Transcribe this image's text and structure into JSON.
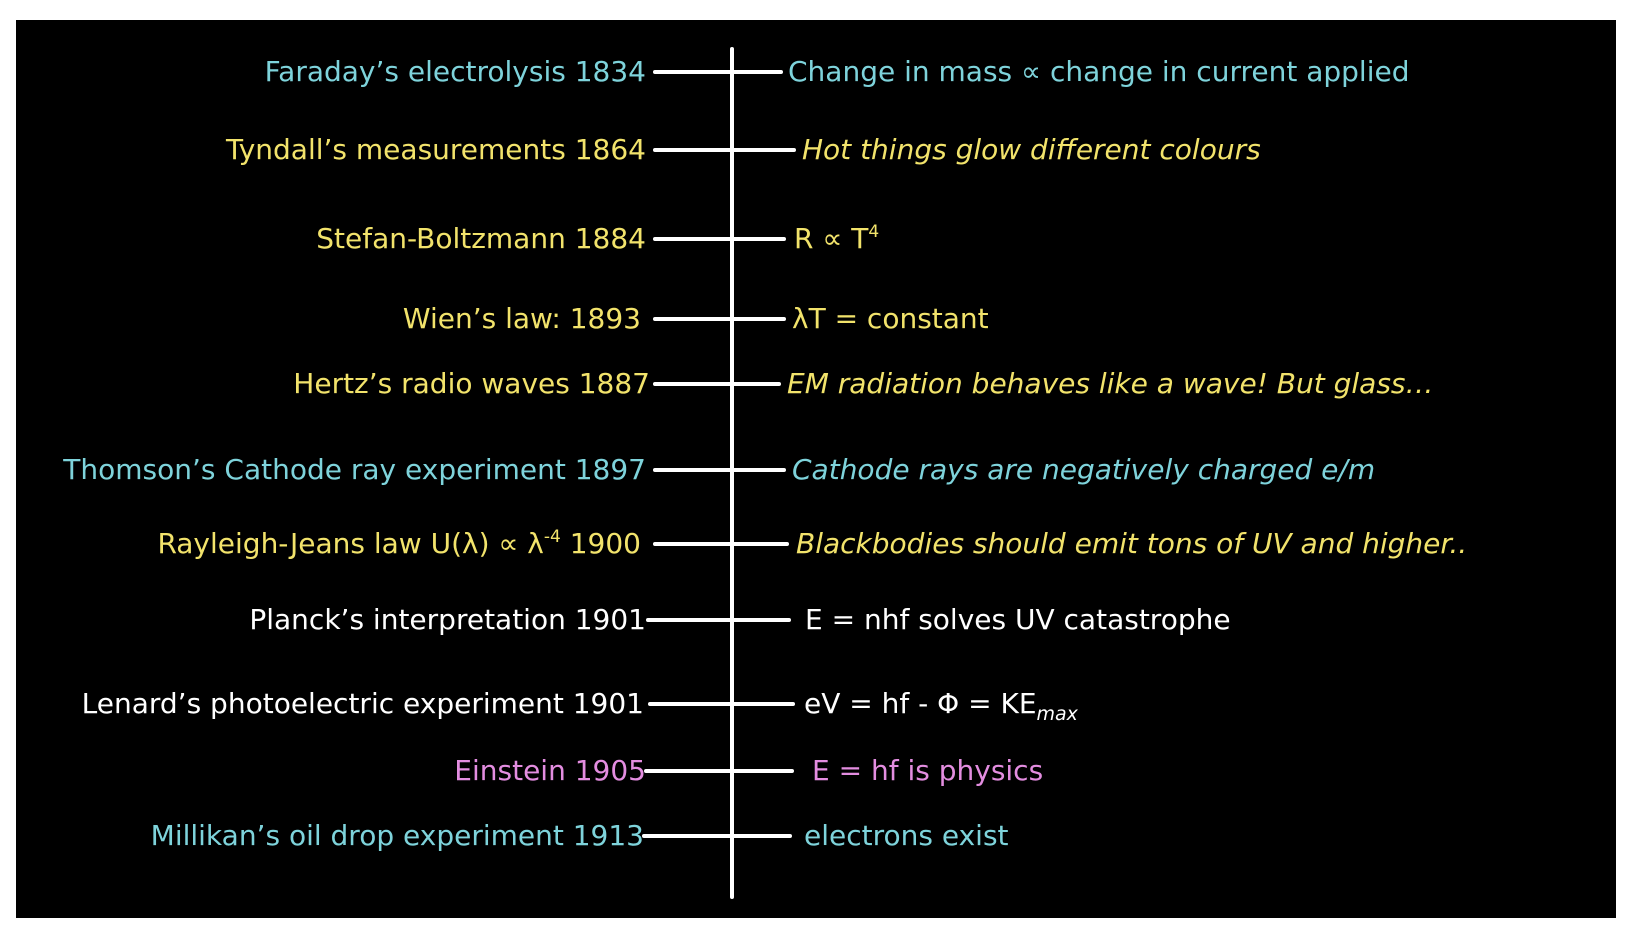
{
  "colors": {
    "background": "#000000",
    "cyan": "#7ed3db",
    "yellow": "#f2e36b",
    "white": "#ffffff",
    "pink": "#e38de0"
  },
  "timeline": [
    {
      "left": "Faraday’s electrolysis  1834",
      "right": "Change in mass ∝ change in current applied",
      "color": "cyan"
    },
    {
      "left": "Tyndall’s measurements 1864",
      "right": "Hot things glow different colours",
      "color": "yellow"
    },
    {
      "left": "Stefan-Boltzmann 1884",
      "right": "R ∝ T",
      "right_sup": "4",
      "color": "yellow"
    },
    {
      "left": "Wien’s law:  1893",
      "right": "λT = constant",
      "color": "yellow"
    },
    {
      "left": "Hertz’s radio waves 1887",
      "right": "EM radiation behaves like a wave! But glass…",
      "color": "yellow"
    },
    {
      "left": "Thomson’s Cathode ray experiment 1897",
      "right": "Cathode rays are negatively charged e/m",
      "color": "cyan"
    },
    {
      "left_a": "Rayleigh-Jeans law U(λ) ∝ λ",
      "left_sup": "-4",
      "left_b": " 1900",
      "right": "Blackbodies should emit tons of UV and higher..",
      "color": "yellow"
    },
    {
      "left": "Planck’s interpretation 1901",
      "right": "E = nhf  solves UV catastrophe",
      "color": "white"
    },
    {
      "left": "Lenard’s photoelectric experiment 1901",
      "right": "eV = hf - Φ = KE",
      "right_sub": "max",
      "color": "white"
    },
    {
      "left": "Einstein 1905",
      "right": "E = hf  is physics",
      "color": "pink"
    },
    {
      "left": "Millikan’s oil drop experiment 1913",
      "right": "electrons exist",
      "color": "cyan"
    }
  ]
}
